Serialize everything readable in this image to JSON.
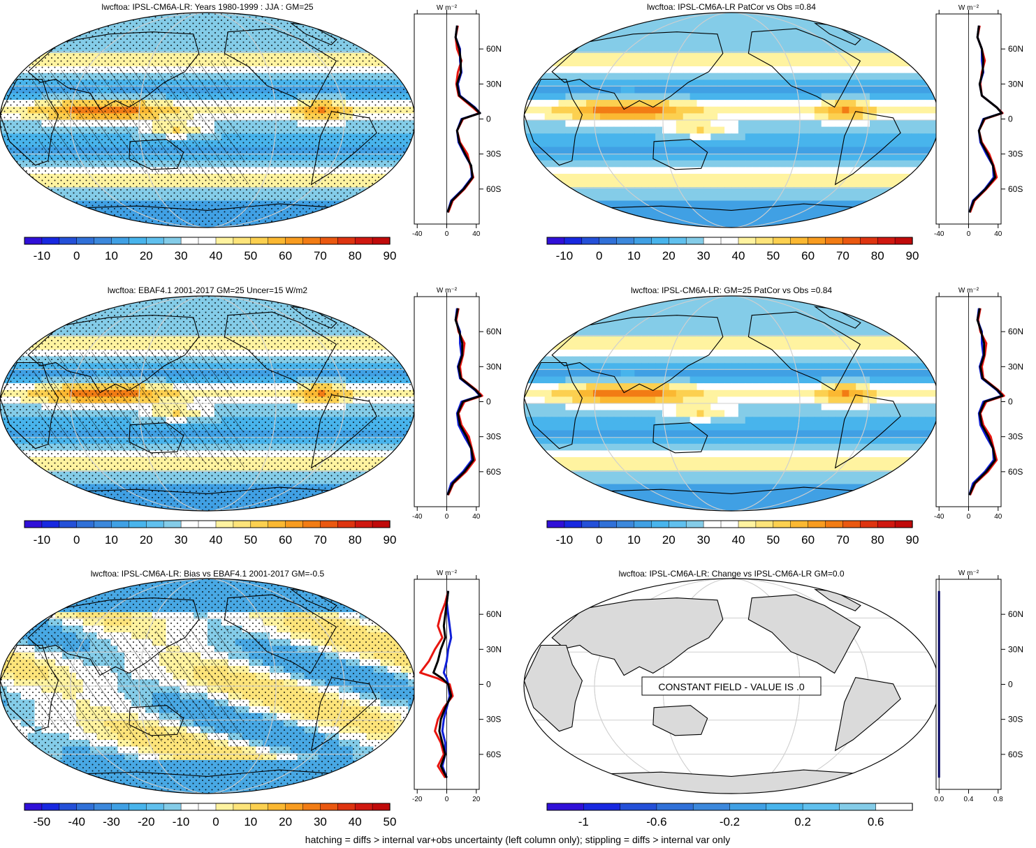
{
  "footer": "hatching = diffs > internal var+obs uncertainty (left column only); stippling = diffs > internal var only",
  "units_label": "W m⁻²",
  "chart_data": [
    {
      "type": "heatmap",
      "title": "lwcftoa: IPSL-CM6A-LR: Years 1980-1999 : JJA : GM=25",
      "colorbar_ticks": [
        "-10",
        "0",
        "10",
        "20",
        "30",
        "40",
        "50",
        "60",
        "70",
        "80",
        "90"
      ],
      "zonal_mean": {
        "xticks": [
          "-40",
          "0",
          "40"
        ],
        "lat_ticks": [
          "60N",
          "30N",
          "0",
          "30S",
          "60S"
        ],
        "lat": [
          80,
          70,
          60,
          50,
          40,
          30,
          20,
          10,
          5,
          0,
          -10,
          -20,
          -30,
          -40,
          -50,
          -60,
          -70,
          -80
        ],
        "series": [
          {
            "color": "#e8150f",
            "values": [
              15,
              12,
              14,
              20,
              15,
              13,
              16,
              35,
              44,
              22,
              14,
              18,
              28,
              32,
              36,
              24,
              8,
              2
            ]
          },
          {
            "color": "#1020d8",
            "values": [
              14,
              12,
              18,
              18,
              20,
              15,
              18,
              38,
              45,
              20,
              14,
              16,
              24,
              33,
              34,
              22,
              6,
              1
            ]
          },
          {
            "color": "#000000",
            "values": [
              14,
              12,
              17,
              19,
              19,
              14,
              17,
              37,
              45,
              21,
              14,
              17,
              25,
              33,
              35,
              23,
              7,
              1
            ]
          }
        ]
      }
    },
    {
      "type": "heatmap",
      "title": "lwcftoa: IPSL-CM6A-LR PatCor vs Obs =0.84",
      "colorbar_ticks": [
        "-10",
        "0",
        "10",
        "20",
        "30",
        "40",
        "50",
        "60",
        "70",
        "80",
        "90"
      ],
      "zonal_mean": {
        "xticks": [
          "-40",
          "0",
          "40"
        ],
        "lat_ticks": [
          "60N",
          "30N",
          "0",
          "30S",
          "60S"
        ],
        "lat": [
          80,
          70,
          60,
          50,
          40,
          30,
          20,
          10,
          5,
          0,
          -10,
          -20,
          -30,
          -40,
          -50,
          -60,
          -70,
          -80
        ],
        "series": [
          {
            "color": "#e8150f",
            "values": [
              15,
              12,
              18,
              22,
              18,
              16,
              18,
              38,
              46,
              22,
              14,
              18,
              28,
              34,
              38,
              24,
              8,
              2
            ]
          },
          {
            "color": "#1020d8",
            "values": [
              14,
              12,
              18,
              18,
              20,
              15,
              18,
              38,
              45,
              20,
              14,
              16,
              24,
              33,
              34,
              22,
              6,
              1
            ]
          },
          {
            "color": "#000000",
            "values": [
              14,
              12,
              18,
              20,
              19,
              15,
              18,
              38,
              45,
              21,
              14,
              17,
              26,
              33,
              36,
              23,
              7,
              1
            ]
          }
        ]
      }
    },
    {
      "type": "heatmap",
      "title": "lwcftoa: EBAF4.1 2001-2017 GM=25 Uncer=15 W/m2",
      "colorbar_ticks": [
        "-10",
        "0",
        "10",
        "20",
        "30",
        "40",
        "50",
        "60",
        "70",
        "80",
        "90"
      ],
      "zonal_mean": {
        "xticks": [
          "-40",
          "0",
          "40"
        ],
        "lat_ticks": [
          "60N",
          "30N",
          "0",
          "30S",
          "60S"
        ],
        "lat": [
          80,
          70,
          60,
          50,
          40,
          30,
          20,
          10,
          5,
          0,
          -10,
          -20,
          -30,
          -40,
          -50,
          -60,
          -70,
          -80
        ],
        "series": [
          {
            "color": "#e8150f",
            "values": [
              16,
              13,
              16,
              24,
              22,
              18,
              20,
              40,
              48,
              24,
              16,
              20,
              30,
              34,
              38,
              26,
              9,
              2
            ]
          },
          {
            "color": "#1020d8",
            "values": [
              14,
              12,
              18,
              18,
              20,
              15,
              18,
              38,
              45,
              20,
              14,
              16,
              24,
              33,
              34,
              22,
              6,
              1
            ]
          },
          {
            "color": "#000000",
            "values": [
              15,
              12,
              17,
              21,
              21,
              16,
              19,
              39,
              46,
              22,
              15,
              18,
              27,
              33,
              36,
              24,
              8,
              1
            ]
          }
        ]
      }
    },
    {
      "type": "heatmap",
      "title": "lwcftoa: IPSL-CM6A-LR: GM=25 PatCor vs Obs =0.84",
      "colorbar_ticks": [
        "-10",
        "0",
        "10",
        "20",
        "30",
        "40",
        "50",
        "60",
        "70",
        "80",
        "90"
      ],
      "zonal_mean": {
        "xticks": [
          "-40",
          "0",
          "40"
        ],
        "lat_ticks": [
          "60N",
          "30N",
          "0",
          "30S",
          "60S"
        ],
        "lat": [
          80,
          70,
          60,
          50,
          40,
          30,
          20,
          10,
          5,
          0,
          -10,
          -20,
          -30,
          -40,
          -50,
          -60,
          -70,
          -80
        ],
        "series": [
          {
            "color": "#e8150f",
            "values": [
              16,
              13,
              16,
              24,
              22,
              18,
              20,
              40,
              48,
              24,
              16,
              20,
              30,
              34,
              38,
              26,
              9,
              2
            ]
          },
          {
            "color": "#1020d8",
            "values": [
              14,
              12,
              18,
              18,
              20,
              15,
              18,
              38,
              45,
              20,
              14,
              16,
              24,
              33,
              34,
              22,
              6,
              1
            ]
          },
          {
            "color": "#000000",
            "values": [
              15,
              12,
              17,
              21,
              21,
              16,
              19,
              39,
              46,
              22,
              15,
              18,
              27,
              33,
              36,
              24,
              8,
              1
            ]
          }
        ]
      }
    },
    {
      "type": "heatmap",
      "title": "lwcftoa: IPSL-CM6A-LR: Bias vs EBAF4.1 2001-2017 GM=-0.5",
      "colorbar_ticks": [
        "-50",
        "-40",
        "-30",
        "-20",
        "-10",
        "0",
        "10",
        "20",
        "30",
        "40",
        "50"
      ],
      "zonal_mean": {
        "xticks": [
          "-20",
          "0",
          "20"
        ],
        "lat_ticks": [
          "60N",
          "30N",
          "0",
          "30S",
          "60S"
        ],
        "lat": [
          80,
          70,
          60,
          50,
          40,
          30,
          20,
          10,
          5,
          0,
          -10,
          -20,
          -30,
          -40,
          -50,
          -60,
          -70,
          -80
        ],
        "series": [
          {
            "color": "#e8150f",
            "values": [
              1,
              -1,
              -4,
              -6,
              -3,
              -8,
              -12,
              -18,
              -6,
              2,
              4,
              -2,
              -6,
              -8,
              -4,
              -2,
              -6,
              -1
            ]
          },
          {
            "color": "#1020d8",
            "values": [
              1,
              0,
              1,
              2,
              3,
              1,
              0,
              -2,
              0,
              1,
              2,
              0,
              -2,
              -3,
              -1,
              -1,
              -3,
              0
            ]
          },
          {
            "color": "#000000",
            "values": [
              1,
              0,
              -1,
              -2,
              -1,
              -4,
              -6,
              -9,
              -3,
              1,
              3,
              -1,
              -4,
              -5,
              -3,
              -1,
              -4,
              0
            ]
          }
        ]
      }
    },
    {
      "type": "heatmap",
      "title": "lwcftoa: IPSL-CM6A-LR: Change vs IPSL-CM6A-LR GM=0.0",
      "annotation": "CONSTANT FIELD - VALUE IS .0",
      "colorbar_ticks": [
        "-1",
        "-0.6",
        "-0.2",
        "0.2",
        "0.6"
      ],
      "zonal_mean": {
        "xticks": [
          "0.0",
          "0.4",
          "0.8"
        ],
        "lat_ticks": [
          "60N",
          "30N",
          "0",
          "30S",
          "60S"
        ],
        "lat": [
          80,
          -80
        ],
        "series": [
          {
            "color": "#000060",
            "values": [
              0,
              0
            ]
          }
        ]
      }
    }
  ]
}
